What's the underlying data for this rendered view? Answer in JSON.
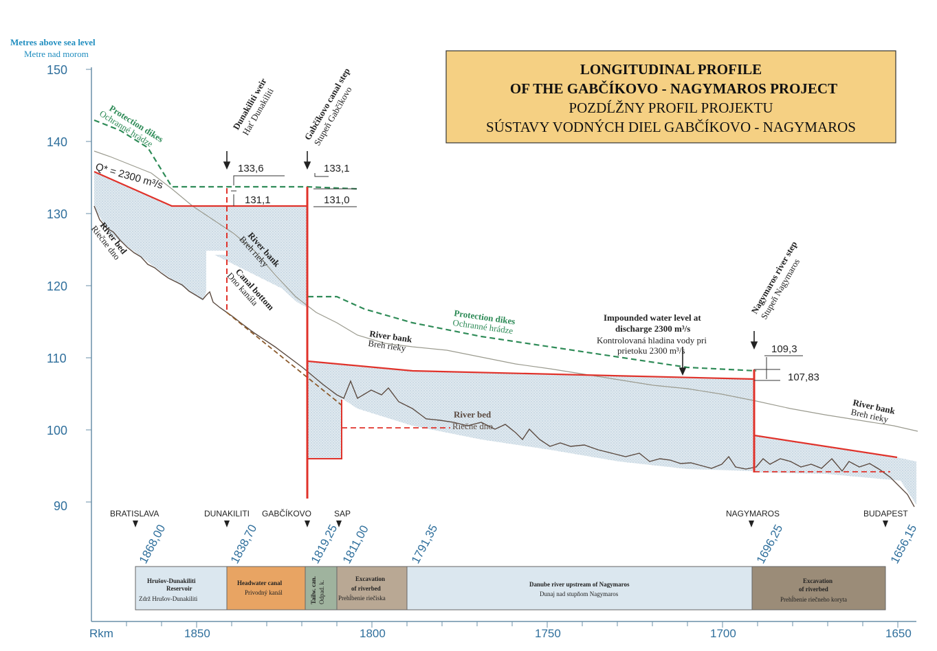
{
  "axis": {
    "title_en": "Metres above sea level",
    "title_sk": "Metre nad morom",
    "y_ticks": [
      "150",
      "140",
      "130",
      "120",
      "110",
      "100",
      "90"
    ],
    "x_unit": "Rkm",
    "x_ticks": [
      "1850",
      "1800",
      "1750",
      "1700",
      "1650"
    ]
  },
  "title_box": {
    "line1": "LONGITUDINAL PROFILE",
    "line2": "OF THE GABČÍKOVO - NAGYMAROS PROJECT",
    "line3": "POZDĹŽNY PROFIL PROJEKTU",
    "line4": "SÚSTAVY VODNÝCH DIEL GABČÍKOVO - NAGYMAROS",
    "fill_color": "#f5d083"
  },
  "structures": {
    "dunakiliti_en": "Dunakiliti weir",
    "dunakiliti_sk": "Hať Dunakiliti",
    "gabcikovo_en": "Gabčíkovo canal step",
    "gabcikovo_sk": "Stupeň Gabčíkovo",
    "nagymaros_en": "Nagymaros river step",
    "nagymaros_sk": "Stupeň Nagymaros"
  },
  "labels": {
    "protection_dikes_en": "Protection dikes",
    "protection_dikes_sk": "Ochranné hrádze",
    "discharge": "Q* = 2300 m³/s",
    "river_bed_en": "River bed",
    "river_bed_sk": "Riečne dno",
    "river_bank_en": "River bank",
    "river_bank_sk": "Breh rieky",
    "canal_bottom_en": "Canal bottom",
    "canal_bottom_sk": "Dno kanála",
    "impounded_en1": "Impounded water level at",
    "impounded_en2": "discharge 2300 m³/s",
    "impounded_sk1": "Kontrolovaná hladina vody pri",
    "impounded_sk2": "prietoku 2300 m³/s"
  },
  "levels": {
    "dunakiliti_upper": "133,6",
    "dunakiliti_lower": "131,1",
    "gabcikovo_upper": "133,1",
    "gabcikovo_lower": "131,0",
    "nagymaros_upper": "109,3",
    "nagymaros_lower": "107,83"
  },
  "towns": [
    "BRATISLAVA",
    "DUNAKILITI",
    "GABČÍKOVO",
    "SAP",
    "NAGYMAROS",
    "BUDAPEST"
  ],
  "river_km": [
    "1868,00",
    "1838,70",
    "1819,25",
    "1811,00",
    "1791,35",
    "1696,25",
    "1656,15"
  ],
  "segments": [
    {
      "en1": "Hrušov-Dunakiliti",
      "en2": "Reservoir",
      "sk": "Zdrž Hrušov-Dunakiliti",
      "color": "#dbe7ef"
    },
    {
      "en1": "Headwater canal",
      "en2": "",
      "sk": "Privodný kanál",
      "color": "#e8a463"
    },
    {
      "en1": "Tailw. can.",
      "en2": "",
      "sk": "Odpad. k.",
      "color": "#9fb39e"
    },
    {
      "en1": "Excavation",
      "en2": "of riverbed",
      "sk": "Prehĺbenie riečiska",
      "color": "#b9a894"
    },
    {
      "en1": "Danube river upstream of Nagymaros",
      "en2": "",
      "sk": "Dunaj nad stupňom Nagymaros",
      "color": "#dbe7ef"
    },
    {
      "en1": "Excavation",
      "en2": "of riverbed",
      "sk": "Prehĺbenie riečneho koryta",
      "color": "#9b8c78"
    }
  ]
}
